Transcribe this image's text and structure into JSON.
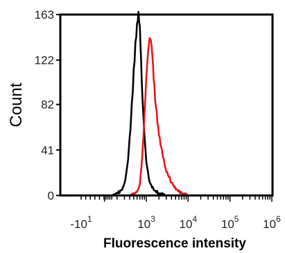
{
  "chart_data": {
    "type": "line",
    "title": "",
    "xlabel": "Fluorescence intensity",
    "ylabel": "Count",
    "x_scale": "log",
    "xlim": [
      -30,
      1000000
    ],
    "ylim": [
      0,
      163
    ],
    "y_ticks": [
      0,
      41,
      82,
      122,
      163
    ],
    "y_tick_labels": [
      "0",
      "41",
      "82",
      "122",
      "163"
    ],
    "x_ticks": [
      -10,
      1000,
      10000,
      100000,
      1000000
    ],
    "x_tick_labels": [
      {
        "base": "-10",
        "exp": "1"
      },
      {
        "base": "10",
        "exp": "3"
      },
      {
        "base": "10",
        "exp": "4"
      },
      {
        "base": "10",
        "exp": "5"
      },
      {
        "base": "10",
        "exp": "6"
      }
    ],
    "grid": false,
    "legend": "none",
    "series": [
      {
        "color": "#000000",
        "x": [
          150,
          250,
          300,
          350,
          400,
          450,
          500,
          550,
          600,
          650,
          700,
          750,
          800,
          900,
          1000,
          1200,
          1500,
          2000,
          3000
        ],
        "y": [
          0,
          4,
          10,
          25,
          50,
          80,
          110,
          135,
          152,
          163,
          150,
          120,
          90,
          55,
          30,
          12,
          5,
          2,
          0
        ]
      },
      {
        "color": "#e8141c",
        "x": [
          400,
          600,
          700,
          800,
          900,
          1000,
          1100,
          1200,
          1300,
          1400,
          1500,
          1700,
          2000,
          2500,
          3000,
          4000,
          5000,
          7000,
          10000
        ],
        "y": [
          0,
          3,
          10,
          35,
          70,
          105,
          128,
          141,
          138,
          125,
          105,
          80,
          55,
          35,
          22,
          12,
          6,
          2,
          0
        ]
      }
    ]
  }
}
